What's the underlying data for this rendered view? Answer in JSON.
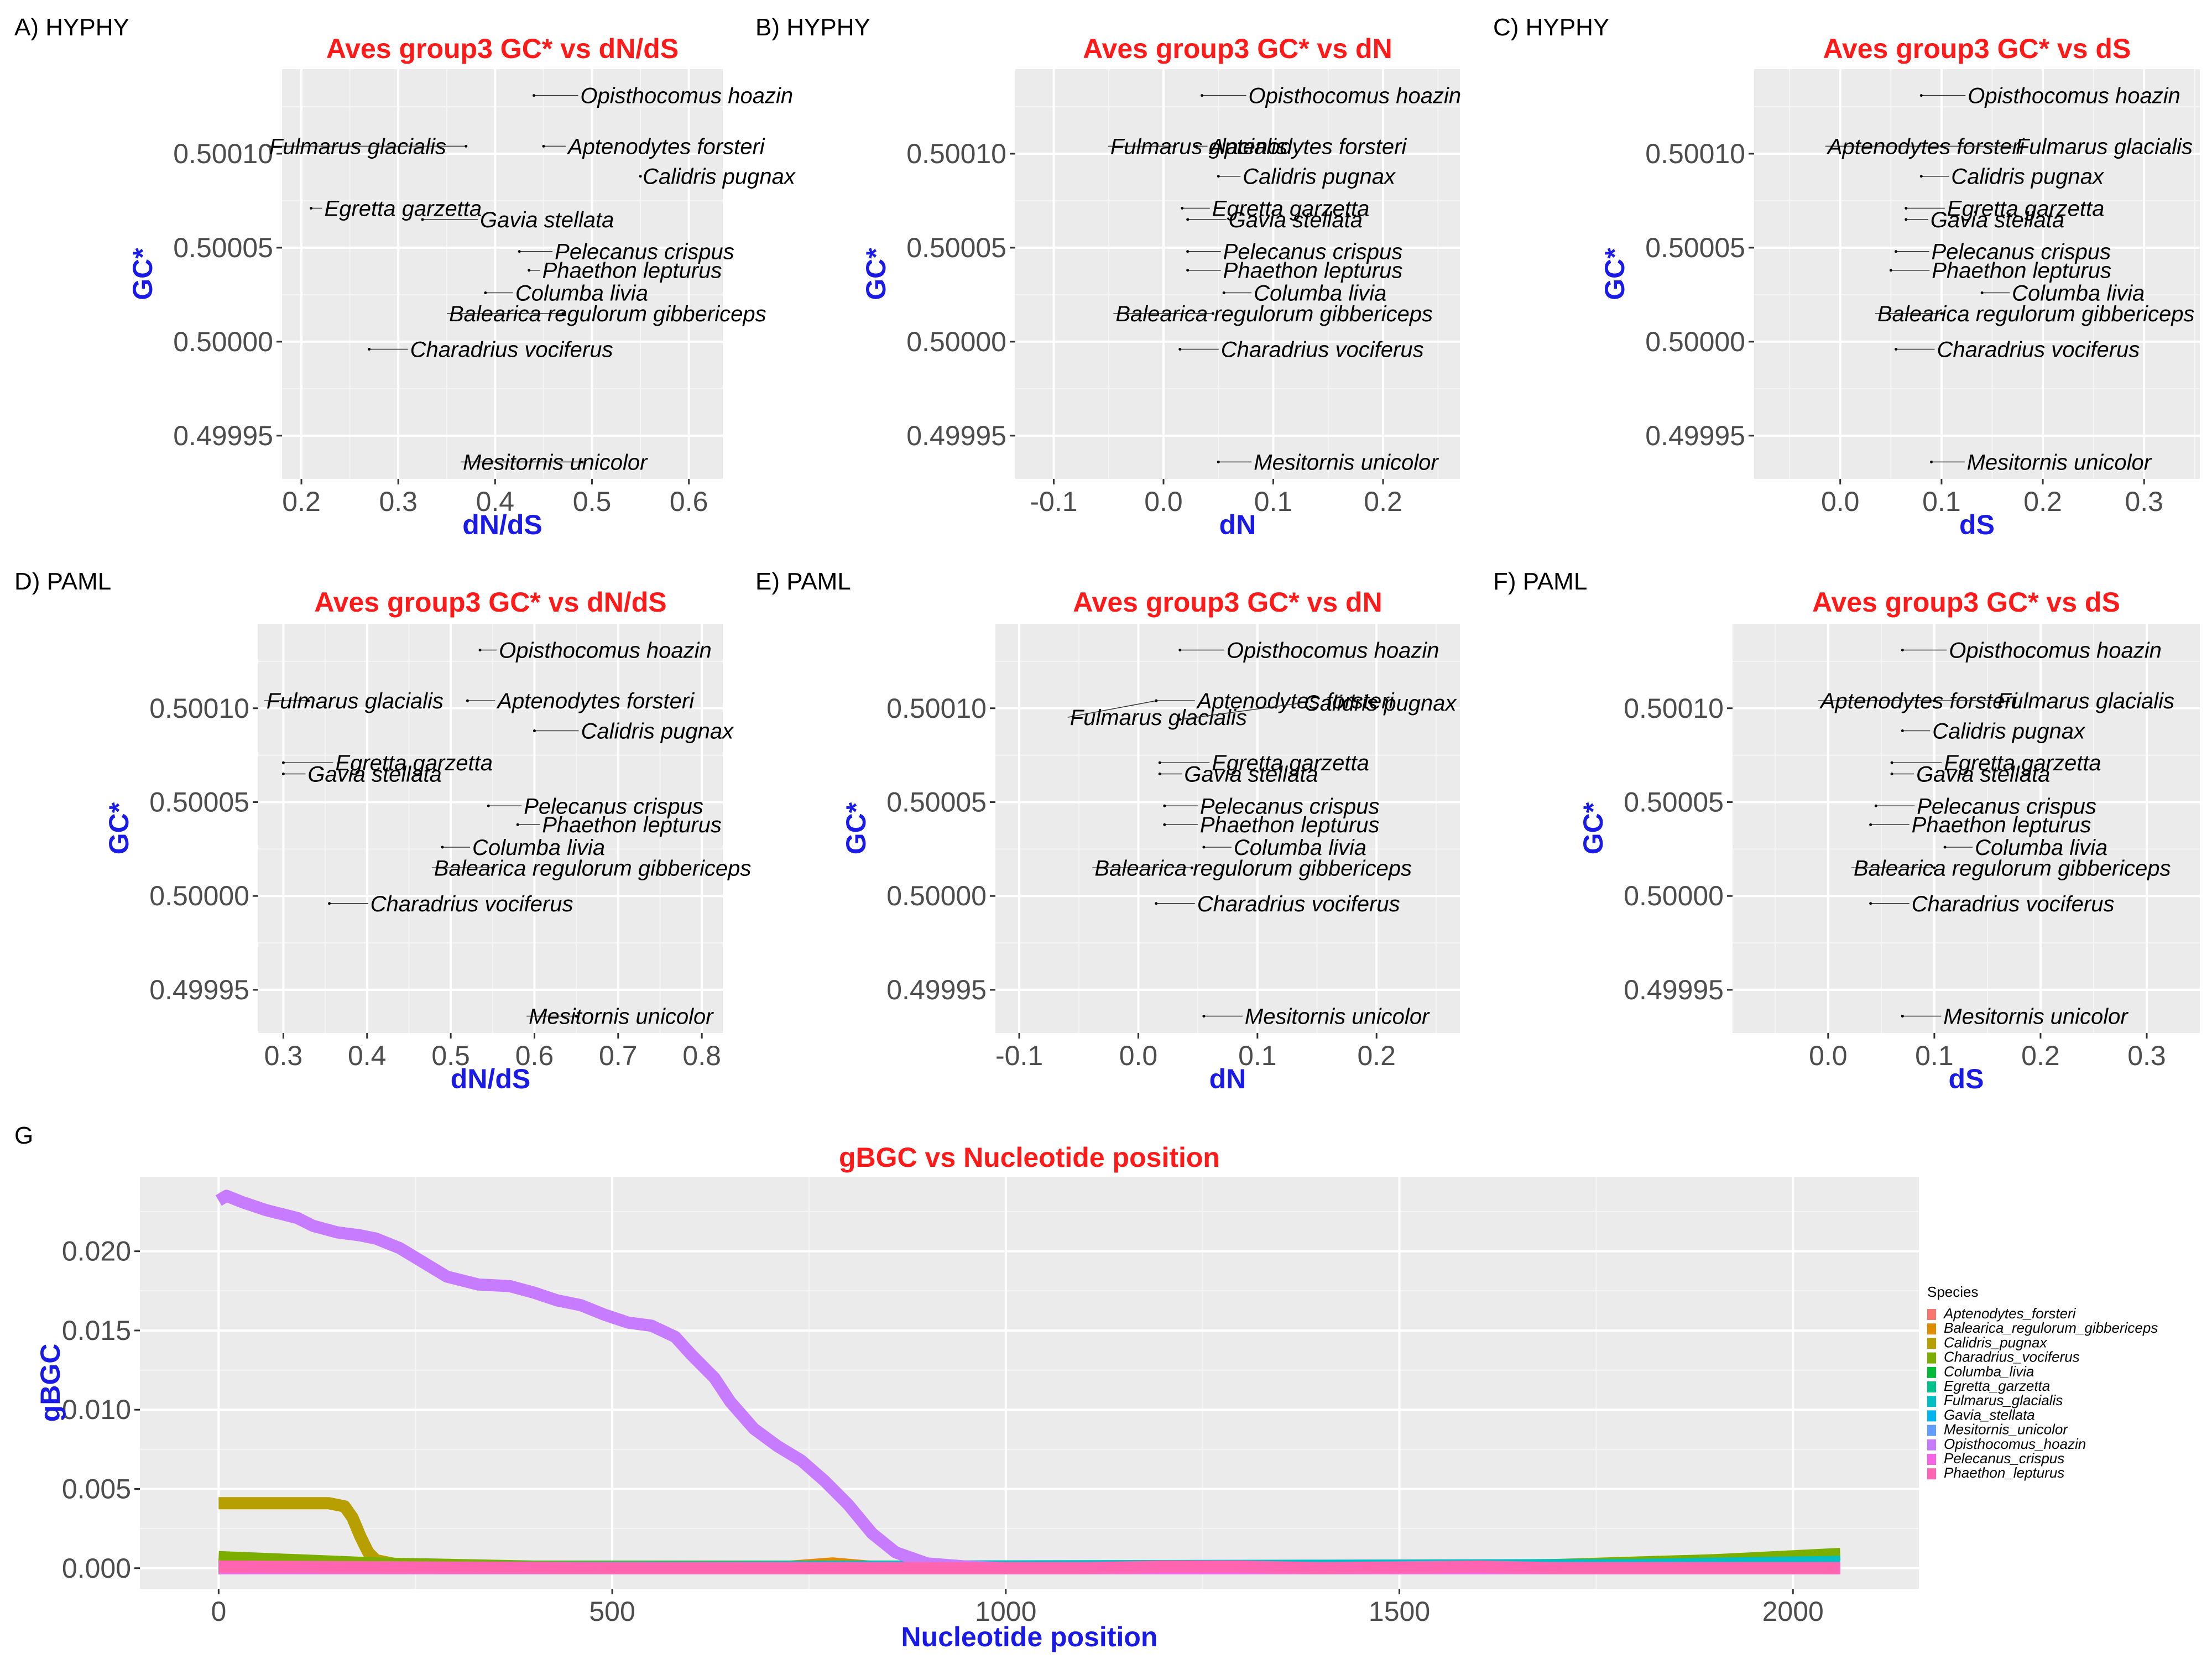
{
  "chart_data": [
    {
      "panel_label": "A) HYPHY",
      "type": "scatter",
      "title": "Aves group3 GC* vs dN/dS",
      "xlabel": "dN/dS",
      "ylabel": "GC*",
      "xlim": [
        0.18,
        0.635
      ],
      "ylim": [
        0.499927,
        0.500145
      ],
      "xticks": [
        0.2,
        0.3,
        0.4,
        0.5,
        0.6
      ],
      "xtick_labels": [
        "0.2",
        "0.3",
        "0.4",
        "0.5",
        "0.6"
      ],
      "yticks": [
        0.49995,
        0.5,
        0.50005,
        0.5001
      ],
      "ytick_labels": [
        "0.49995",
        "0.50000",
        "0.50005",
        "0.50010"
      ],
      "points": [
        {
          "label": "Opisthocomus hoazin",
          "x": 0.44,
          "y": 0.500131
        },
        {
          "label": "Fulmarus glacialis",
          "x": 0.37,
          "y": 0.500104
        },
        {
          "label": "Aptenodytes forsteri",
          "x": 0.45,
          "y": 0.500104
        },
        {
          "label": "Calidris pugnax",
          "x": 0.55,
          "y": 0.500088
        },
        {
          "label": "Egretta garzetta",
          "x": 0.21,
          "y": 0.500071
        },
        {
          "label": "Gavia stellata",
          "x": 0.325,
          "y": 0.500065
        },
        {
          "label": "Pelecanus crispus",
          "x": 0.425,
          "y": 0.500048
        },
        {
          "label": "Phaethon lepturus",
          "x": 0.435,
          "y": 0.500038
        },
        {
          "label": "Columba livia",
          "x": 0.39,
          "y": 0.500026
        },
        {
          "label": "Balearica regulorum gibbericeps",
          "x": 0.47,
          "y": 0.500015
        },
        {
          "label": "Charadrius vociferus",
          "x": 0.27,
          "y": 0.499996
        },
        {
          "label": "Mesitornis unicolor",
          "x": 0.49,
          "y": 0.499936
        }
      ]
    },
    {
      "panel_label": "B) HYPHY",
      "type": "scatter",
      "title": "Aves group3 GC* vs dN",
      "xlabel": "dN",
      "ylabel": "GC*",
      "xlim": [
        -0.135,
        0.27
      ],
      "ylim": [
        0.499927,
        0.500145
      ],
      "xticks": [
        -0.1,
        0.0,
        0.1,
        0.2
      ],
      "xtick_labels": [
        "-0.1",
        "0.0",
        "0.1",
        "0.2"
      ],
      "yticks": [
        0.49995,
        0.5,
        0.50005,
        0.5001
      ],
      "ytick_labels": [
        "0.49995",
        "0.50000",
        "0.50005",
        "0.50010"
      ],
      "points": [
        {
          "label": "Opisthocomus hoazin",
          "x": 0.035,
          "y": 0.500131
        },
        {
          "label": "Fulmarus glacialis",
          "x": 0.01,
          "y": 0.500104
        },
        {
          "label": "Aptenodytes forsteri",
          "x": 0.03,
          "y": 0.500104
        },
        {
          "label": "Calidris pugnax",
          "x": 0.05,
          "y": 0.500088
        },
        {
          "label": "Egretta garzetta",
          "x": 0.017,
          "y": 0.500071
        },
        {
          "label": "Gavia stellata",
          "x": 0.022,
          "y": 0.500065
        },
        {
          "label": "Pelecanus crispus",
          "x": 0.022,
          "y": 0.500048
        },
        {
          "label": "Phaethon lepturus",
          "x": 0.022,
          "y": 0.500038
        },
        {
          "label": "Columba livia",
          "x": 0.055,
          "y": 0.500026
        },
        {
          "label": "Balearica regulorum gibbericeps",
          "x": 0.045,
          "y": 0.500015
        },
        {
          "label": "Charadrius vociferus",
          "x": 0.015,
          "y": 0.499996
        },
        {
          "label": "Mesitornis unicolor",
          "x": 0.05,
          "y": 0.499936
        }
      ]
    },
    {
      "panel_label": "C) HYPHY",
      "type": "scatter",
      "title": "Aves group3 GC* vs dS",
      "xlabel": "dS",
      "ylabel": "GC*",
      "xlim": [
        -0.085,
        0.355
      ],
      "ylim": [
        0.499927,
        0.500145
      ],
      "xticks": [
        0.0,
        0.1,
        0.2,
        0.3
      ],
      "xtick_labels": [
        "0.0",
        "0.1",
        "0.2",
        "0.3"
      ],
      "yticks": [
        0.49995,
        0.5,
        0.50005,
        0.5001
      ],
      "ytick_labels": [
        "0.49995",
        "0.50000",
        "0.50005",
        "0.50010"
      ],
      "points": [
        {
          "label": "Opisthocomus hoazin",
          "x": 0.08,
          "y": 0.500131
        },
        {
          "label": "Aptenodytes forsteri",
          "x": 0.1,
          "y": 0.500104
        },
        {
          "label": "Fulmarus glacialis",
          "x": 0.1,
          "y": 0.500104
        },
        {
          "label": "Calidris pugnax",
          "x": 0.08,
          "y": 0.500088
        },
        {
          "label": "Egretta garzetta",
          "x": 0.065,
          "y": 0.500071
        },
        {
          "label": "Gavia stellata",
          "x": 0.065,
          "y": 0.500065
        },
        {
          "label": "Pelecanus crispus",
          "x": 0.055,
          "y": 0.500048
        },
        {
          "label": "Phaethon lepturus",
          "x": 0.05,
          "y": 0.500038
        },
        {
          "label": "Columba livia",
          "x": 0.14,
          "y": 0.500026
        },
        {
          "label": "Balearica regulorum gibbericeps",
          "x": 0.1,
          "y": 0.500015
        },
        {
          "label": "Charadrius vociferus",
          "x": 0.055,
          "y": 0.499996
        },
        {
          "label": "Mesitornis unicolor",
          "x": 0.09,
          "y": 0.499936
        }
      ]
    },
    {
      "panel_label": "D) PAML",
      "type": "scatter",
      "title": "Aves group3 GC* vs dN/dS",
      "xlabel": "dN/dS",
      "ylabel": "GC*",
      "xlim": [
        0.27,
        0.825
      ],
      "ylim": [
        0.499927,
        0.500145
      ],
      "xticks": [
        0.3,
        0.4,
        0.5,
        0.6,
        0.7,
        0.8
      ],
      "xtick_labels": [
        "0.3",
        "0.4",
        "0.5",
        "0.6",
        "0.7",
        "0.8"
      ],
      "yticks": [
        0.49995,
        0.5,
        0.50005,
        0.5001
      ],
      "ytick_labels": [
        "0.49995",
        "0.50000",
        "0.50005",
        "0.50010"
      ],
      "points": [
        {
          "label": "Opisthocomus hoazin",
          "x": 0.535,
          "y": 0.500131
        },
        {
          "label": "Fulmarus glacialis",
          "x": 0.33,
          "y": 0.500104
        },
        {
          "label": "Aptenodytes forsteri",
          "x": 0.52,
          "y": 0.500104
        },
        {
          "label": "Calidris pugnax",
          "x": 0.6,
          "y": 0.500088
        },
        {
          "label": "Egretta garzetta",
          "x": 0.3,
          "y": 0.500071
        },
        {
          "label": "Gavia stellata",
          "x": 0.3,
          "y": 0.500065
        },
        {
          "label": "Pelecanus crispus",
          "x": 0.545,
          "y": 0.500048
        },
        {
          "label": "Phaethon lepturus",
          "x": 0.58,
          "y": 0.500038
        },
        {
          "label": "Columba livia",
          "x": 0.49,
          "y": 0.500026
        },
        {
          "label": "Balearica regulorum gibbericeps",
          "x": 0.55,
          "y": 0.500015
        },
        {
          "label": "Charadrius vociferus",
          "x": 0.355,
          "y": 0.499996
        },
        {
          "label": "Mesitornis unicolor",
          "x": 0.65,
          "y": 0.499936
        }
      ]
    },
    {
      "panel_label": "E) PAML",
      "type": "scatter",
      "title": "Aves group3 GC* vs dN",
      "xlabel": "dN",
      "ylabel": "GC*",
      "xlim": [
        -0.12,
        0.27
      ],
      "ylim": [
        0.499927,
        0.500145
      ],
      "xticks": [
        -0.1,
        0.0,
        0.1,
        0.2
      ],
      "xtick_labels": [
        "-0.1",
        "0.0",
        "0.1",
        "0.2"
      ],
      "yticks": [
        0.49995,
        0.5,
        0.50005,
        0.5001
      ],
      "ytick_labels": [
        "0.49995",
        "0.50000",
        "0.50005",
        "0.50010"
      ],
      "points": [
        {
          "label": "Opisthocomus hoazin",
          "x": 0.035,
          "y": 0.500131
        },
        {
          "label": "Aptenodytes forsteri",
          "x": 0.015,
          "y": 0.500104
        },
        {
          "label": "Fulmarus glacialis",
          "x": 0.015,
          "y": 0.500104
        },
        {
          "label": "Calidris pugnax",
          "x": 0.035,
          "y": 0.500094
        },
        {
          "label": "Egretta garzetta",
          "x": 0.018,
          "y": 0.500071
        },
        {
          "label": "Gavia stellata",
          "x": 0.018,
          "y": 0.500065
        },
        {
          "label": "Pelecanus crispus",
          "x": 0.022,
          "y": 0.500048
        },
        {
          "label": "Phaethon lepturus",
          "x": 0.022,
          "y": 0.500038
        },
        {
          "label": "Columba livia",
          "x": 0.055,
          "y": 0.500026
        },
        {
          "label": "Balearica regulorum gibbericeps",
          "x": 0.045,
          "y": 0.500015
        },
        {
          "label": "Charadrius vociferus",
          "x": 0.015,
          "y": 0.499996
        },
        {
          "label": "Mesitornis unicolor",
          "x": 0.055,
          "y": 0.499936
        }
      ]
    },
    {
      "panel_label": "F) PAML",
      "type": "scatter",
      "title": "Aves group3 GC* vs dS",
      "xlabel": "dS",
      "ylabel": "GC*",
      "xlim": [
        -0.09,
        0.35
      ],
      "ylim": [
        0.499927,
        0.500145
      ],
      "xticks": [
        0.0,
        0.1,
        0.2,
        0.3
      ],
      "xtick_labels": [
        "0.0",
        "0.1",
        "0.2",
        "0.3"
      ],
      "yticks": [
        0.49995,
        0.5,
        0.50005,
        0.5001
      ],
      "ytick_labels": [
        "0.49995",
        "0.50000",
        "0.50005",
        "0.50010"
      ],
      "points": [
        {
          "label": "Opisthocomus hoazin",
          "x": 0.07,
          "y": 0.500131
        },
        {
          "label": "Aptenodytes forsteri",
          "x": 0.1,
          "y": 0.500104
        },
        {
          "label": "Fulmarus glacialis",
          "x": 0.1,
          "y": 0.500104
        },
        {
          "label": "Calidris pugnax",
          "x": 0.07,
          "y": 0.500088
        },
        {
          "label": "Egretta garzetta",
          "x": 0.06,
          "y": 0.500071
        },
        {
          "label": "Gavia stellata",
          "x": 0.06,
          "y": 0.500065
        },
        {
          "label": "Pelecanus crispus",
          "x": 0.045,
          "y": 0.500048
        },
        {
          "label": "Phaethon lepturus",
          "x": 0.04,
          "y": 0.500038
        },
        {
          "label": "Columba livia",
          "x": 0.11,
          "y": 0.500026
        },
        {
          "label": "Balearica regulorum gibbericeps",
          "x": 0.1,
          "y": 0.500015
        },
        {
          "label": "Charadrius vociferus",
          "x": 0.04,
          "y": 0.499996
        },
        {
          "label": "Mesitornis unicolor",
          "x": 0.07,
          "y": 0.499936
        }
      ]
    },
    {
      "panel_label": "G",
      "type": "line",
      "title": "gBGC vs Nucleotide position",
      "xlabel": "Nucleotide position",
      "ylabel": "gBGC",
      "xlim": [
        -100,
        2160
      ],
      "ylim": [
        -0.0013,
        0.0247
      ],
      "xticks": [
        0,
        500,
        1000,
        1500,
        2000
      ],
      "xtick_labels": [
        "0",
        "500",
        "1000",
        "1500",
        "2000"
      ],
      "yticks": [
        0.0,
        0.005,
        0.01,
        0.015,
        0.02
      ],
      "ytick_labels": [
        "0.000",
        "0.005",
        "0.010",
        "0.015",
        "0.020"
      ],
      "legend_title": "Species",
      "legend_position": "right",
      "series": [
        {
          "name": "Aptenodytes_forsteri",
          "color": "#F8766D",
          "points": [
            [
              0,
              0.0
            ],
            [
              2060,
              0.0
            ]
          ]
        },
        {
          "name": "Balearica_regulorum_gibbericeps",
          "color": "#DE8C00",
          "points": [
            [
              0,
              0.0
            ],
            [
              700,
              0.0
            ],
            [
              780,
              0.0003
            ],
            [
              850,
              0.0
            ],
            [
              2060,
              0.0
            ]
          ]
        },
        {
          "name": "Calidris_pugnax",
          "color": "#B79F00",
          "points": [
            [
              0,
              0.0041
            ],
            [
              50,
              0.0041
            ],
            [
              100,
              0.0041
            ],
            [
              140,
              0.0041
            ],
            [
              160,
              0.0039
            ],
            [
              170,
              0.0032
            ],
            [
              180,
              0.002
            ],
            [
              190,
              0.001
            ],
            [
              200,
              0.0005
            ],
            [
              230,
              0.0002
            ],
            [
              300,
              0.0001
            ],
            [
              400,
              0.0
            ],
            [
              2060,
              0.0
            ]
          ]
        },
        {
          "name": "Charadrius_vociferus",
          "color": "#7CAE00",
          "points": [
            [
              0,
              0.0007
            ],
            [
              100,
              0.0005
            ],
            [
              200,
              0.0003
            ],
            [
              300,
              0.0002
            ],
            [
              400,
              0.0001
            ],
            [
              1500,
              0.0001
            ],
            [
              1700,
              0.0002
            ],
            [
              1900,
              0.0005
            ],
            [
              2060,
              0.0009
            ]
          ]
        },
        {
          "name": "Columba_livia",
          "color": "#00BA38",
          "points": [
            [
              0,
              0.0
            ],
            [
              2060,
              0.0
            ]
          ]
        },
        {
          "name": "Egretta_garzetta",
          "color": "#00C08B",
          "points": [
            [
              0,
              0.0
            ],
            [
              2060,
              0.0
            ]
          ]
        },
        {
          "name": "Fulmarus_glacialis",
          "color": "#00BFC4",
          "points": [
            [
              0,
              0.0
            ],
            [
              1800,
              0.0002
            ],
            [
              2060,
              0.0004
            ]
          ]
        },
        {
          "name": "Gavia_stellata",
          "color": "#00B4F0",
          "points": [
            [
              0,
              0.0
            ],
            [
              2060,
              0.0
            ]
          ]
        },
        {
          "name": "Mesitornis_unicolor",
          "color": "#619CFF",
          "points": [
            [
              0,
              0.0
            ],
            [
              2060,
              0.0
            ]
          ]
        },
        {
          "name": "Opisthocomus_hoazin",
          "color": "#C77CFF",
          "points": [
            [
              0,
              0.0232
            ],
            [
              10,
              0.0235
            ],
            [
              30,
              0.0231
            ],
            [
              60,
              0.0226
            ],
            [
              100,
              0.0221
            ],
            [
              120,
              0.0216
            ],
            [
              150,
              0.0212
            ],
            [
              180,
              0.021
            ],
            [
              200,
              0.0208
            ],
            [
              230,
              0.0202
            ],
            [
              260,
              0.0193
            ],
            [
              290,
              0.0184
            ],
            [
              330,
              0.0179
            ],
            [
              370,
              0.0178
            ],
            [
              400,
              0.0174
            ],
            [
              430,
              0.0169
            ],
            [
              460,
              0.0166
            ],
            [
              490,
              0.016
            ],
            [
              520,
              0.0155
            ],
            [
              550,
              0.0153
            ],
            [
              580,
              0.0146
            ],
            [
              600,
              0.0135
            ],
            [
              630,
              0.012
            ],
            [
              650,
              0.0105
            ],
            [
              680,
              0.0088
            ],
            [
              710,
              0.0077
            ],
            [
              740,
              0.0068
            ],
            [
              770,
              0.0055
            ],
            [
              800,
              0.004
            ],
            [
              830,
              0.0022
            ],
            [
              860,
              0.001
            ],
            [
              900,
              0.0003
            ],
            [
              950,
              0.0001
            ],
            [
              1000,
              0.0
            ],
            [
              2060,
              0.0
            ]
          ]
        },
        {
          "name": "Pelecanus_crispus",
          "color": "#F564E3",
          "points": [
            [
              0,
              0.0
            ],
            [
              2060,
              0.0
            ]
          ]
        },
        {
          "name": "Phaethon_lepturus",
          "color": "#FF64B0",
          "points": [
            [
              0,
              0.0001
            ],
            [
              500,
              0.0
            ],
            [
              1100,
              0.0
            ],
            [
              1200,
              0.0001
            ],
            [
              1300,
              0.0001
            ],
            [
              1400,
              0.0
            ],
            [
              1600,
              0.0001
            ],
            [
              1700,
              0.0
            ],
            [
              2060,
              0.0
            ]
          ]
        }
      ]
    }
  ]
}
